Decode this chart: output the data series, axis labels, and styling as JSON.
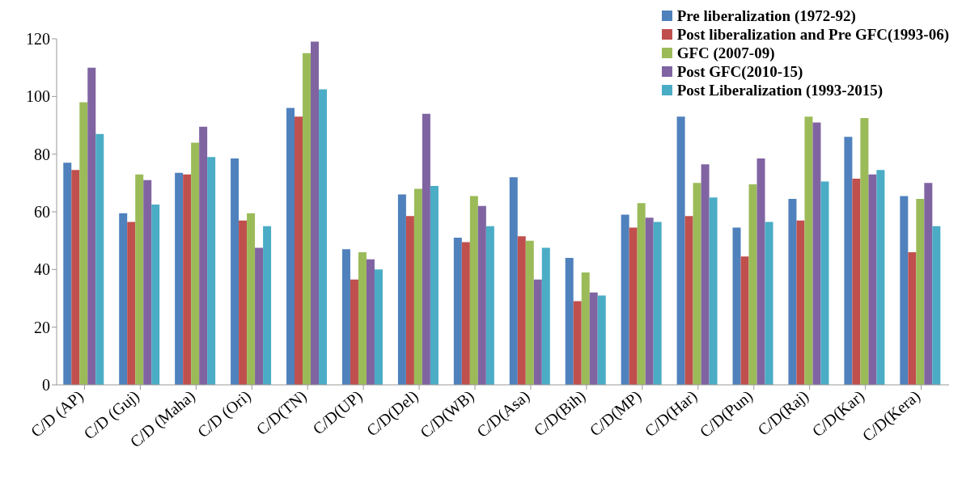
{
  "chart_data": {
    "type": "bar",
    "categories": [
      "C/D (AP)",
      "C/D (Guj)",
      "C/D (Maha)",
      "C/D (Ori)",
      "C/D(TN)",
      "C/D(UP)",
      "C/D(Del)",
      "C/D(WB)",
      "C/D(Asa)",
      "C/D(Bih)",
      "C/D(MP)",
      "C/D(Har)",
      "C/D(Pun)",
      "C/D(Raj)",
      "C/D(Kar)",
      "C/D(Kera)"
    ],
    "series": [
      {
        "name": "Pre liberalization (1972-92)",
        "color": "#4f81bd",
        "values": [
          77,
          59.5,
          73.5,
          78.5,
          96,
          47,
          66,
          51,
          72,
          44,
          59,
          93,
          54.5,
          64.5,
          86,
          65.5
        ]
      },
      {
        "name": "Post liberalization and Pre GFC(1993-06)",
        "color": "#c0504d",
        "values": [
          74.5,
          56.5,
          73,
          57,
          93,
          36.5,
          58.5,
          49.5,
          51.5,
          29,
          54.5,
          58.5,
          44.5,
          57,
          71.5,
          46
        ]
      },
      {
        "name": "GFC (2007-09)",
        "color": "#9bbb59",
        "values": [
          98,
          73,
          84,
          59.5,
          115,
          46,
          68,
          65.5,
          50,
          39,
          63,
          70,
          69.5,
          93,
          92.5,
          64.5
        ]
      },
      {
        "name": "Post GFC(2010-15)",
        "color": "#8064a2",
        "values": [
          110,
          71,
          89.5,
          47.5,
          119,
          43.5,
          94,
          62,
          36.5,
          32,
          58,
          76.5,
          78.5,
          91,
          73,
          70
        ]
      },
      {
        "name": "Post Liberalization (1993-2015)",
        "color": "#4bacc6",
        "values": [
          87,
          62.5,
          79,
          55,
          102.5,
          40,
          69,
          55,
          47.5,
          31,
          56.5,
          65,
          56.5,
          70.5,
          74.5,
          55
        ]
      }
    ],
    "ylim": [
      0,
      120
    ],
    "yticks": [
      0,
      20,
      40,
      60,
      80,
      100,
      120
    ],
    "grid": false,
    "legend": "top right"
  }
}
